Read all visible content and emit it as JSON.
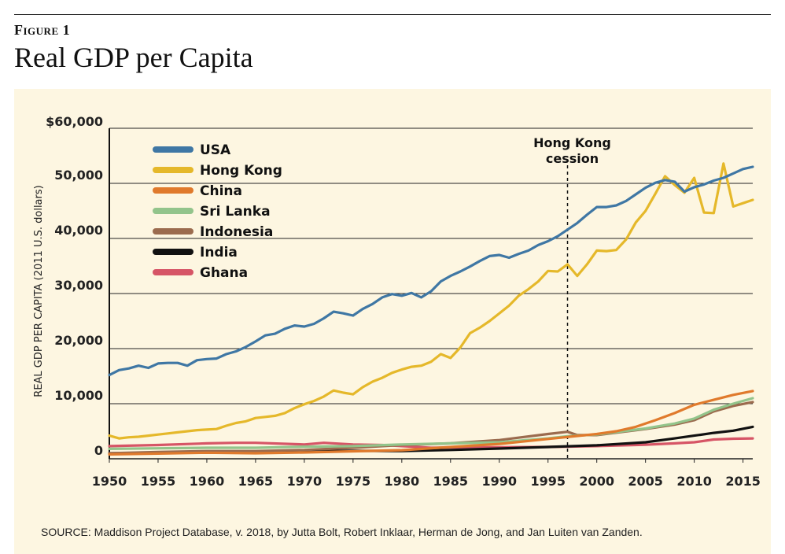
{
  "figure_label": "Figure 1",
  "figure_title": "Real GDP per Capita",
  "source": "SOURCE: Maddison Project Database, v. 2018, by Jutta Bolt, Robert Inklaar, Herman de Jong, and Jan Luiten van Zanden.",
  "chart_data": {
    "type": "line",
    "title": "Real GDP per Capita",
    "xlabel": "",
    "ylabel": "REAL GDP PER CAPITA (2011 U.S. dollars)",
    "xlim": [
      1950,
      2016
    ],
    "ylim": [
      0,
      60000
    ],
    "x_ticks": [
      1950,
      1955,
      1960,
      1965,
      1970,
      1975,
      1980,
      1985,
      1990,
      1995,
      2000,
      2005,
      2010,
      2015
    ],
    "y_ticks": [
      0,
      10000,
      20000,
      30000,
      40000,
      50000,
      60000
    ],
    "y_tick_labels": [
      "0",
      "10,000",
      "20,000",
      "30,000",
      "40,000",
      "50,000",
      "$60,000"
    ],
    "annotation": {
      "x": 1997,
      "lines": [
        "Hong Kong",
        "cession"
      ]
    },
    "legend_position": "top-left",
    "series": [
      {
        "name": "USA",
        "color": "#3f77a4",
        "points": [
          [
            1950,
            15200
          ],
          [
            1951,
            16100
          ],
          [
            1952,
            16400
          ],
          [
            1953,
            16900
          ],
          [
            1954,
            16500
          ],
          [
            1955,
            17300
          ],
          [
            1956,
            17400
          ],
          [
            1957,
            17400
          ],
          [
            1958,
            16900
          ],
          [
            1959,
            17900
          ],
          [
            1960,
            18100
          ],
          [
            1961,
            18200
          ],
          [
            1962,
            19000
          ],
          [
            1963,
            19500
          ],
          [
            1964,
            20300
          ],
          [
            1965,
            21300
          ],
          [
            1966,
            22400
          ],
          [
            1967,
            22700
          ],
          [
            1968,
            23600
          ],
          [
            1969,
            24200
          ],
          [
            1970,
            24000
          ],
          [
            1971,
            24500
          ],
          [
            1972,
            25500
          ],
          [
            1973,
            26700
          ],
          [
            1974,
            26400
          ],
          [
            1975,
            26000
          ],
          [
            1976,
            27200
          ],
          [
            1977,
            28100
          ],
          [
            1978,
            29300
          ],
          [
            1979,
            29900
          ],
          [
            1980,
            29600
          ],
          [
            1981,
            30100
          ],
          [
            1982,
            29300
          ],
          [
            1983,
            30400
          ],
          [
            1984,
            32200
          ],
          [
            1985,
            33200
          ],
          [
            1986,
            34000
          ],
          [
            1987,
            34900
          ],
          [
            1988,
            35900
          ],
          [
            1989,
            36800
          ],
          [
            1990,
            37000
          ],
          [
            1991,
            36500
          ],
          [
            1992,
            37200
          ],
          [
            1993,
            37800
          ],
          [
            1994,
            38800
          ],
          [
            1995,
            39500
          ],
          [
            1996,
            40400
          ],
          [
            1997,
            41600
          ],
          [
            1998,
            42800
          ],
          [
            1999,
            44300
          ],
          [
            2000,
            45700
          ],
          [
            2001,
            45700
          ],
          [
            2002,
            46000
          ],
          [
            2003,
            46800
          ],
          [
            2004,
            48000
          ],
          [
            2005,
            49200
          ],
          [
            2006,
            50100
          ],
          [
            2007,
            50600
          ],
          [
            2008,
            50300
          ],
          [
            2009,
            48500
          ],
          [
            2010,
            49300
          ],
          [
            2011,
            49800
          ],
          [
            2012,
            50500
          ],
          [
            2013,
            51000
          ],
          [
            2014,
            51800
          ],
          [
            2015,
            52600
          ],
          [
            2016,
            53000
          ]
        ]
      },
      {
        "name": "Hong Kong",
        "color": "#e5b82a",
        "points": [
          [
            1950,
            4200
          ],
          [
            1951,
            3700
          ],
          [
            1952,
            3900
          ],
          [
            1953,
            4000
          ],
          [
            1954,
            4200
          ],
          [
            1955,
            4400
          ],
          [
            1956,
            4600
          ],
          [
            1957,
            4800
          ],
          [
            1958,
            5000
          ],
          [
            1959,
            5200
          ],
          [
            1960,
            5300
          ],
          [
            1961,
            5400
          ],
          [
            1962,
            6000
          ],
          [
            1963,
            6500
          ],
          [
            1964,
            6800
          ],
          [
            1965,
            7400
          ],
          [
            1966,
            7600
          ],
          [
            1967,
            7800
          ],
          [
            1968,
            8300
          ],
          [
            1969,
            9200
          ],
          [
            1970,
            9900
          ],
          [
            1971,
            10500
          ],
          [
            1972,
            11300
          ],
          [
            1973,
            12400
          ],
          [
            1974,
            12000
          ],
          [
            1975,
            11700
          ],
          [
            1976,
            13000
          ],
          [
            1977,
            14000
          ],
          [
            1978,
            14700
          ],
          [
            1979,
            15600
          ],
          [
            1980,
            16200
          ],
          [
            1981,
            16700
          ],
          [
            1982,
            16900
          ],
          [
            1983,
            17600
          ],
          [
            1984,
            19000
          ],
          [
            1985,
            18300
          ],
          [
            1986,
            20200
          ],
          [
            1987,
            22800
          ],
          [
            1988,
            23800
          ],
          [
            1989,
            25000
          ],
          [
            1990,
            26400
          ],
          [
            1991,
            27800
          ],
          [
            1992,
            29600
          ],
          [
            1993,
            30800
          ],
          [
            1994,
            32200
          ],
          [
            1995,
            34100
          ],
          [
            1996,
            34000
          ],
          [
            1997,
            35300
          ],
          [
            1998,
            33200
          ],
          [
            1999,
            35300
          ],
          [
            2000,
            37800
          ],
          [
            2001,
            37700
          ],
          [
            2002,
            37900
          ],
          [
            2003,
            39800
          ],
          [
            2004,
            42900
          ],
          [
            2005,
            45000
          ],
          [
            2006,
            48100
          ],
          [
            2007,
            51300
          ],
          [
            2008,
            49700
          ],
          [
            2009,
            48300
          ],
          [
            2010,
            51000
          ],
          [
            2011,
            44700
          ],
          [
            2012,
            44600
          ],
          [
            2013,
            53600
          ],
          [
            2014,
            45800
          ],
          [
            2015,
            46400
          ],
          [
            2016,
            47000
          ]
        ]
      },
      {
        "name": "China",
        "color": "#e07a2c",
        "points": [
          [
            1950,
            800
          ],
          [
            1955,
            950
          ],
          [
            1960,
            1100
          ],
          [
            1965,
            1000
          ],
          [
            1970,
            1150
          ],
          [
            1975,
            1350
          ],
          [
            1980,
            1550
          ],
          [
            1985,
            2150
          ],
          [
            1990,
            2700
          ],
          [
            1995,
            3600
          ],
          [
            2000,
            4500
          ],
          [
            2002,
            5000
          ],
          [
            2004,
            5800
          ],
          [
            2006,
            7000
          ],
          [
            2008,
            8300
          ],
          [
            2010,
            9800
          ],
          [
            2012,
            10700
          ],
          [
            2014,
            11600
          ],
          [
            2016,
            12300
          ]
        ]
      },
      {
        "name": "Sri Lanka",
        "color": "#93c48b",
        "points": [
          [
            1950,
            1800
          ],
          [
            1955,
            1900
          ],
          [
            1960,
            2000
          ],
          [
            1965,
            2000
          ],
          [
            1970,
            2200
          ],
          [
            1975,
            2300
          ],
          [
            1980,
            2600
          ],
          [
            1985,
            2800
          ],
          [
            1990,
            3000
          ],
          [
            1995,
            3700
          ],
          [
            1997,
            4100
          ],
          [
            2000,
            4400
          ],
          [
            2005,
            5500
          ],
          [
            2008,
            6400
          ],
          [
            2010,
            7300
          ],
          [
            2012,
            8900
          ],
          [
            2014,
            10000
          ],
          [
            2016,
            11000
          ]
        ]
      },
      {
        "name": "Indonesia",
        "color": "#9b6b4e",
        "points": [
          [
            1950,
            1000
          ],
          [
            1955,
            1250
          ],
          [
            1960,
            1400
          ],
          [
            1965,
            1400
          ],
          [
            1970,
            1600
          ],
          [
            1975,
            2000
          ],
          [
            1980,
            2500
          ],
          [
            1985,
            2800
          ],
          [
            1990,
            3400
          ],
          [
            1995,
            4500
          ],
          [
            1997,
            4900
          ],
          [
            1998,
            4300
          ],
          [
            2000,
            4300
          ],
          [
            2005,
            5400
          ],
          [
            2008,
            6200
          ],
          [
            2010,
            7000
          ],
          [
            2012,
            8600
          ],
          [
            2014,
            9600
          ],
          [
            2016,
            10300
          ]
        ]
      },
      {
        "name": "India",
        "color": "#111111",
        "points": [
          [
            1950,
            1000
          ],
          [
            1955,
            1100
          ],
          [
            1960,
            1250
          ],
          [
            1965,
            1300
          ],
          [
            1970,
            1400
          ],
          [
            1975,
            1450
          ],
          [
            1980,
            1400
          ],
          [
            1985,
            1600
          ],
          [
            1990,
            1850
          ],
          [
            1995,
            2150
          ],
          [
            2000,
            2450
          ],
          [
            2005,
            3000
          ],
          [
            2008,
            3700
          ],
          [
            2010,
            4200
          ],
          [
            2012,
            4700
          ],
          [
            2014,
            5100
          ],
          [
            2016,
            5800
          ]
        ]
      },
      {
        "name": "Ghana",
        "color": "#d65566",
        "points": [
          [
            1950,
            2300
          ],
          [
            1955,
            2500
          ],
          [
            1960,
            2800
          ],
          [
            1963,
            2900
          ],
          [
            1965,
            2900
          ],
          [
            1970,
            2600
          ],
          [
            1972,
            2900
          ],
          [
            1975,
            2600
          ],
          [
            1978,
            2500
          ],
          [
            1980,
            2300
          ],
          [
            1983,
            2000
          ],
          [
            1985,
            2050
          ],
          [
            1990,
            2100
          ],
          [
            1995,
            2150
          ],
          [
            2000,
            2300
          ],
          [
            2005,
            2550
          ],
          [
            2008,
            2800
          ],
          [
            2010,
            3000
          ],
          [
            2012,
            3500
          ],
          [
            2014,
            3650
          ],
          [
            2016,
            3700
          ]
        ]
      }
    ]
  }
}
